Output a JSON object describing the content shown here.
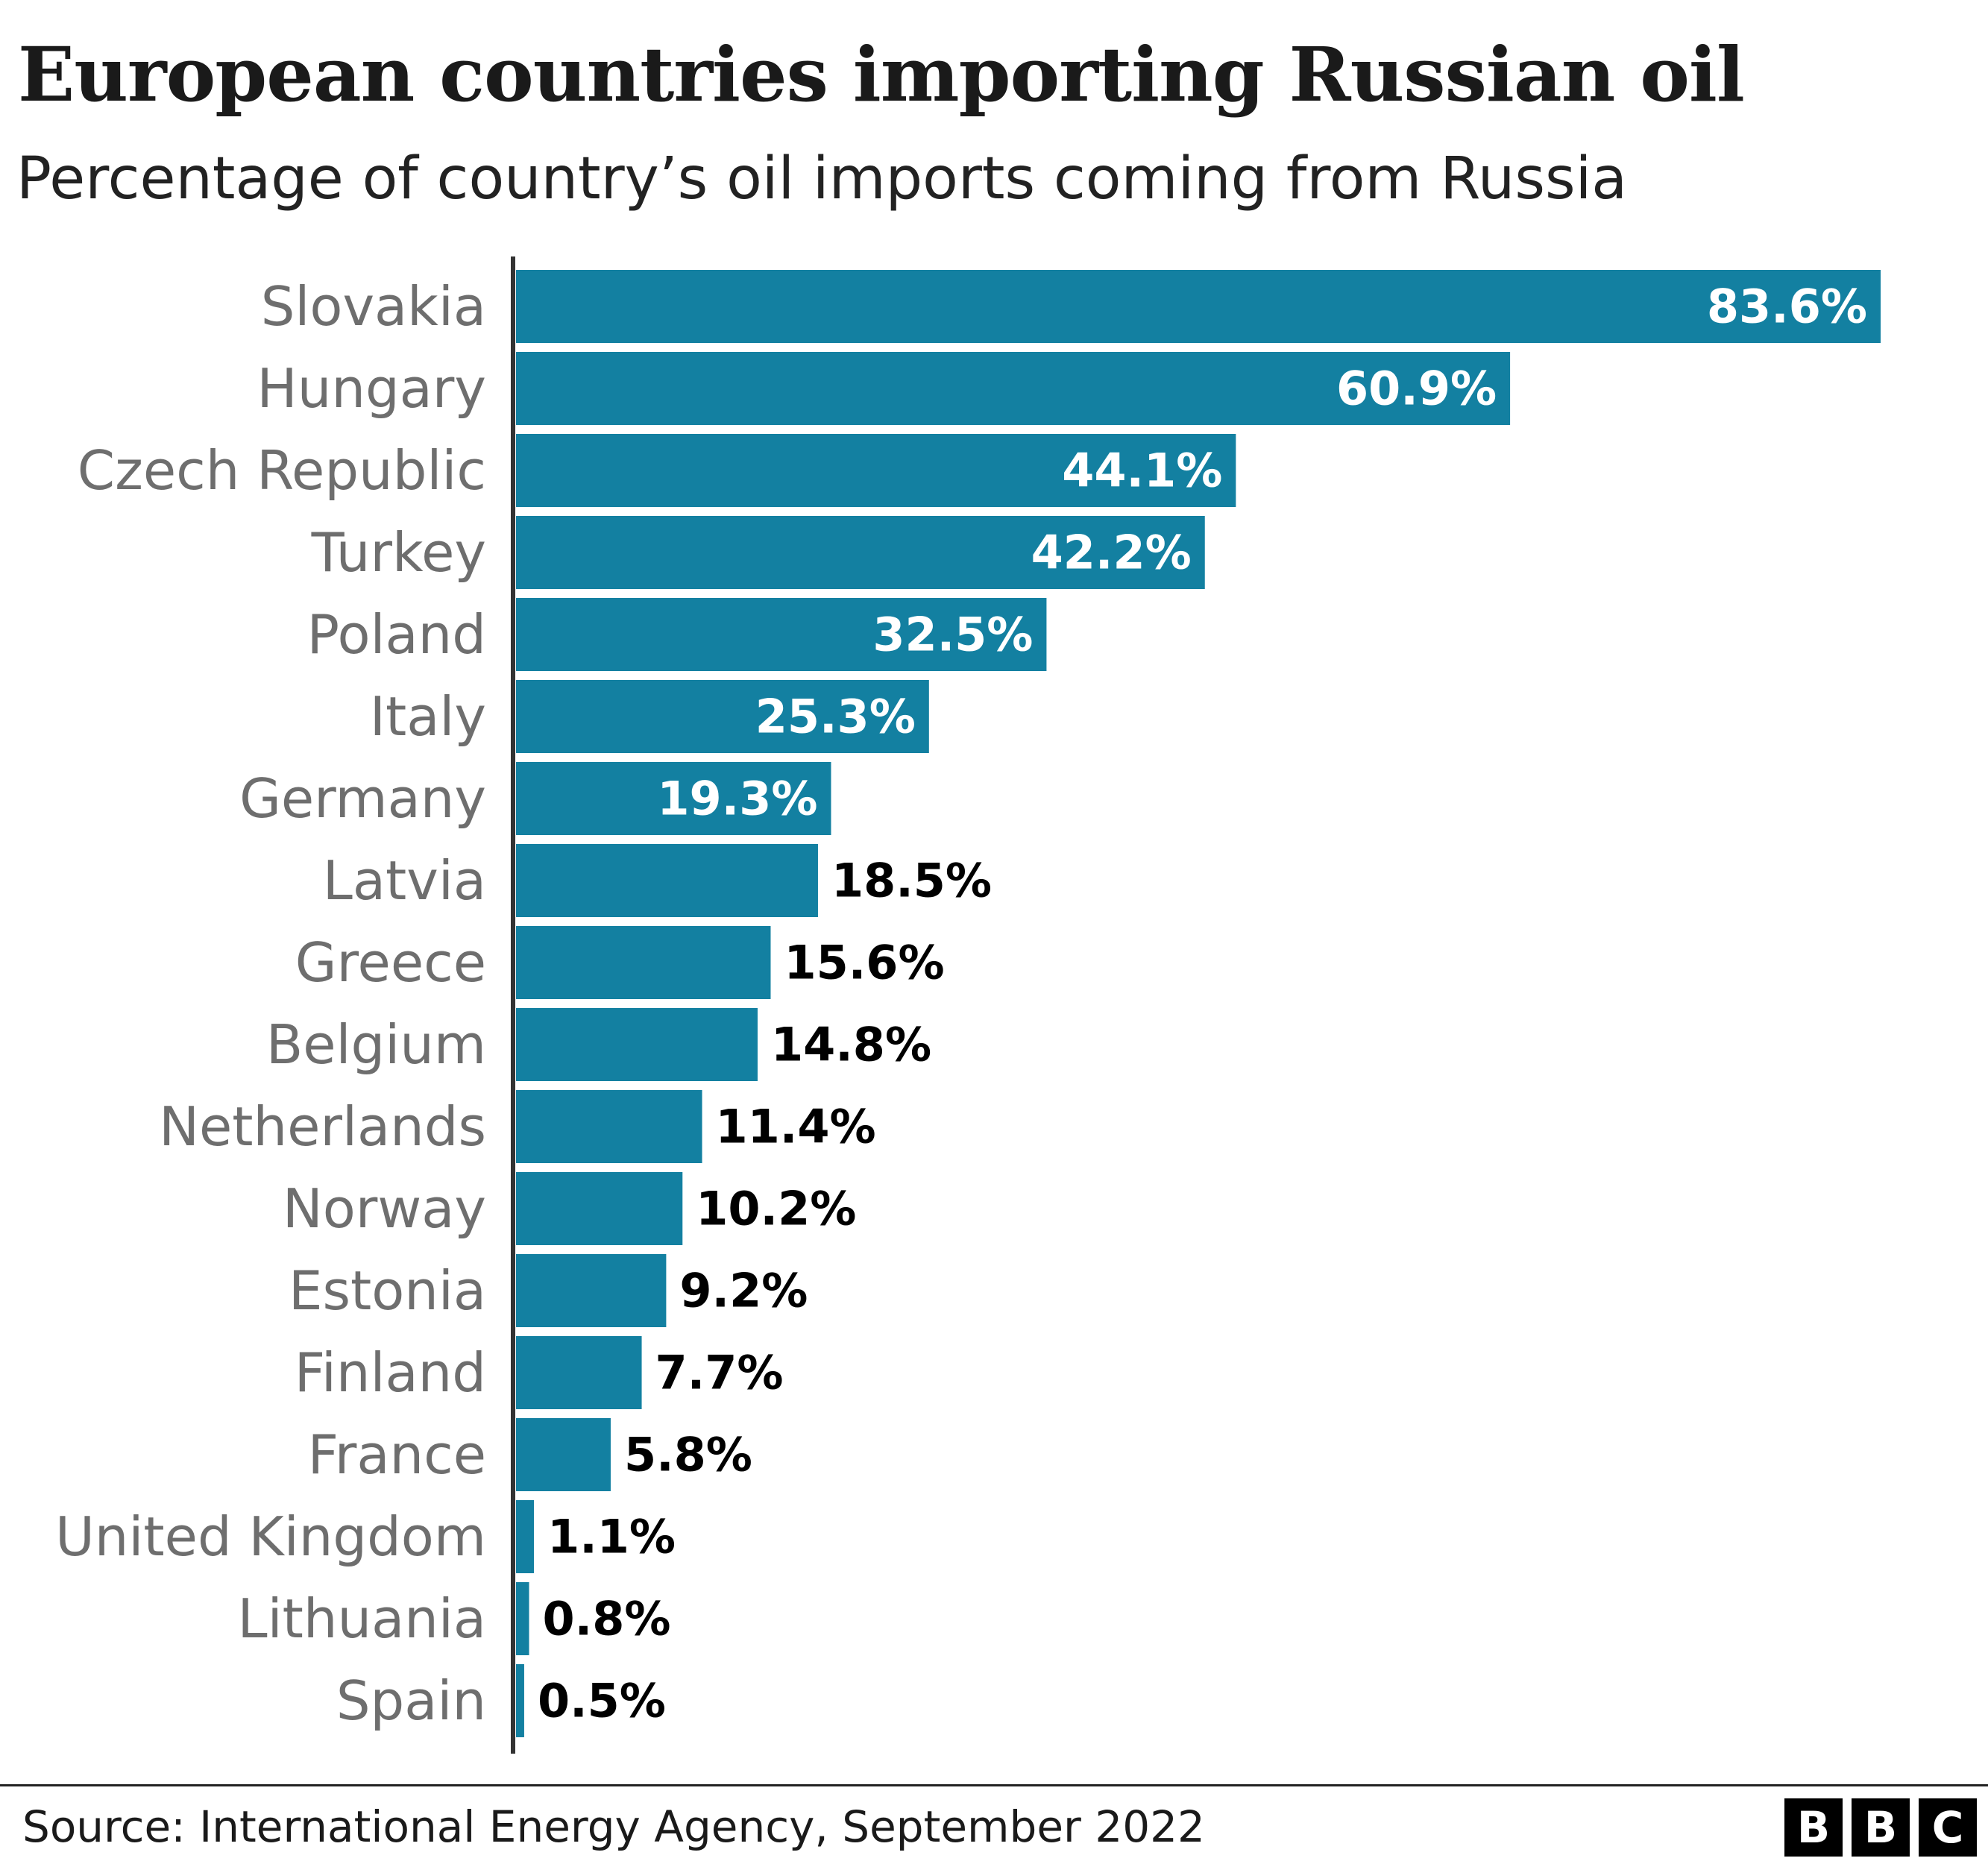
{
  "title": "European countries importing Russian oil",
  "subtitle": "Percentage of country’s oil imports coming from Russia",
  "source": "Source: International Energy Agency, September 2022",
  "logo": [
    "B",
    "B",
    "C"
  ],
  "colors": {
    "bar": "#1380A1",
    "label_inside": "#ffffff",
    "label_outside": "#000000",
    "category_label": "#6e6e6e",
    "axis": "#333333"
  },
  "chart_data": {
    "type": "bar",
    "orientation": "horizontal",
    "categories": [
      "Slovakia",
      "Hungary",
      "Czech Republic",
      "Turkey",
      "Poland",
      "Italy",
      "Germany",
      "Latvia",
      "Greece",
      "Belgium",
      "Netherlands",
      "Norway",
      "Estonia",
      "Finland",
      "France",
      "United Kingdom",
      "Lithuania",
      "Spain"
    ],
    "values": [
      83.6,
      60.9,
      44.1,
      42.2,
      32.5,
      25.3,
      19.3,
      18.5,
      15.6,
      14.8,
      11.4,
      10.2,
      9.2,
      7.7,
      5.8,
      1.1,
      0.8,
      0.5
    ],
    "value_labels": [
      "83.6%",
      "60.9%",
      "44.1%",
      "42.2%",
      "32.5%",
      "25.3%",
      "19.3%",
      "18.5%",
      "15.6%",
      "14.8%",
      "11.4%",
      "10.2%",
      "9.2%",
      "7.7%",
      "5.8%",
      "1.1%",
      "0.8%",
      "0.5%"
    ],
    "title": "European countries importing Russian oil",
    "subtitle": "Percentage of country’s oil imports coming from Russia",
    "xlabel": "",
    "ylabel": "",
    "xlim": [
      0,
      83.6
    ],
    "grid": false,
    "legend": "none"
  }
}
